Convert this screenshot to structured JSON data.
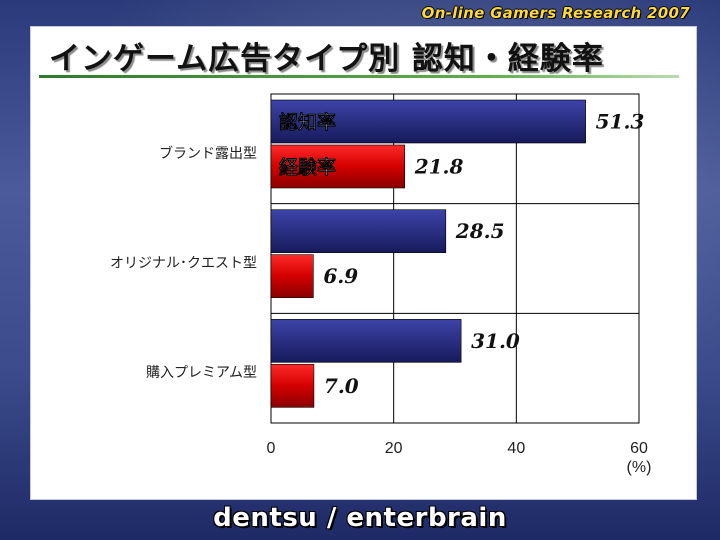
{
  "header": {
    "credit": "On-line Gamers Research 2007"
  },
  "slide": {
    "title": "インゲーム広告タイプ別 認知・経験率"
  },
  "footer": {
    "credit": "dentsu / enterbrain"
  },
  "colors": {
    "series_awareness": "#2a2f82",
    "series_experience": "#d40000",
    "inbar_awareness_text": "#b8c8ff",
    "inbar_experience_text": "#ffd0d8"
  },
  "chart_data": {
    "type": "bar",
    "orientation": "horizontal",
    "categories": [
      "ブランド露出型",
      "オリジナル･クエスト型",
      "購入プレミアム型"
    ],
    "series": [
      {
        "name": "認知率",
        "values": [
          51.3,
          28.5,
          31.0
        ],
        "value_labels": [
          "51.3",
          "28.5",
          "31.0"
        ]
      },
      {
        "name": "経験率",
        "values": [
          21.8,
          6.9,
          7.0
        ],
        "value_labels": [
          "21.8",
          "6.9",
          "7.0"
        ]
      }
    ],
    "xlim": [
      0,
      60
    ],
    "xticks": [
      "0",
      "20",
      "40",
      "60"
    ],
    "xunit": "(%)",
    "grid": true,
    "legend": "series names shown inside the first category's bars"
  }
}
